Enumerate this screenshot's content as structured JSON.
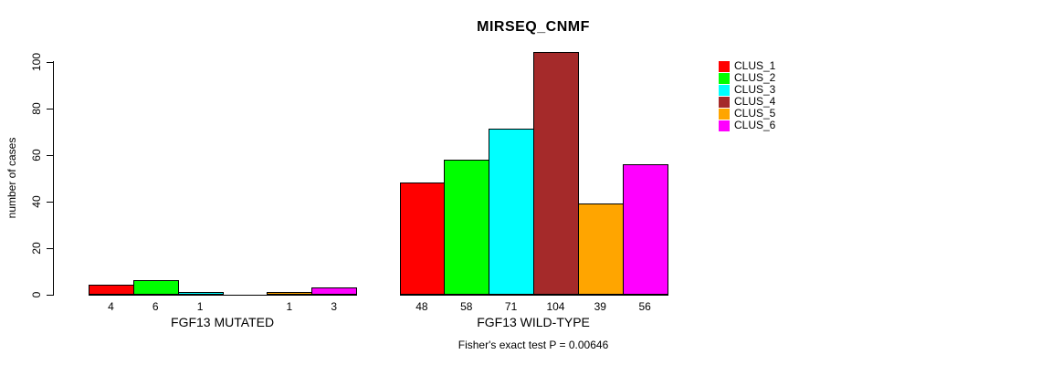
{
  "chart_data": {
    "type": "bar",
    "title": "MIRSEQ_CNMF",
    "ylabel": "number of cases",
    "ylim": [
      0,
      100
    ],
    "yticks": [
      0,
      20,
      40,
      60,
      80,
      100
    ],
    "grid": false,
    "legend_position": "right",
    "legend": [
      {
        "label": "CLUS_1",
        "color": "#FF0000"
      },
      {
        "label": "CLUS_2",
        "color": "#00FF00"
      },
      {
        "label": "CLUS_3",
        "color": "#00FFFF"
      },
      {
        "label": "CLUS_4",
        "color": "#A52A2A"
      },
      {
        "label": "CLUS_5",
        "color": "#FFA500"
      },
      {
        "label": "CLUS_6",
        "color": "#FF00FF"
      }
    ],
    "groups": [
      {
        "label": "FGF13 MUTATED",
        "values": [
          4,
          6,
          1,
          0,
          1,
          3
        ],
        "value_labels": [
          "4",
          "6",
          "1",
          "",
          "1",
          "3"
        ]
      },
      {
        "label": "FGF13 WILD-TYPE",
        "values": [
          48,
          58,
          71,
          104,
          39,
          56
        ],
        "value_labels": [
          "48",
          "58",
          "71",
          "104",
          "39",
          "56"
        ]
      }
    ],
    "footnote": "Fisher's exact test P = 0.00646",
    "colors": {
      "background": "#FFFFFF",
      "axis": "#000000",
      "text": "#000000"
    }
  }
}
